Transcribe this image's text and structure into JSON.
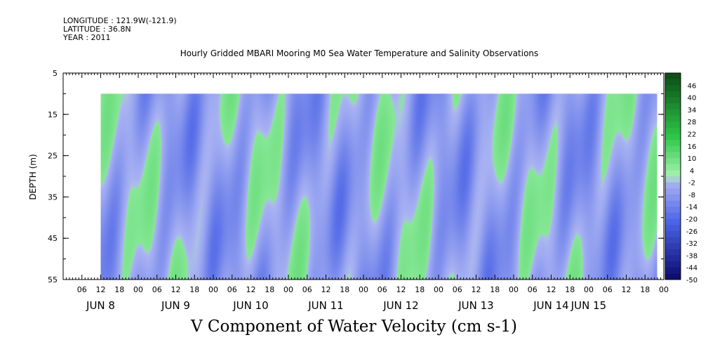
{
  "meta": {
    "longitude": "LONGITUDE : 121.9W(-121.9)",
    "latitude": "LATITUDE : 36.8N",
    "year": "YEAR : 2011"
  },
  "chart_data": {
    "type": "heatmap",
    "title": "Hourly Gridded MBARI Mooring M0 Sea Water Temperature and Salinity Observations",
    "xlabel": "V Component of Water Velocity (cm s-1)",
    "ylabel": "DEPTH (m)",
    "x_range_hours": [
      0,
      192
    ],
    "data_start_hour": 12,
    "y_range": [
      5,
      55
    ],
    "y_reversed": true,
    "data_top_depth": 10,
    "y_ticks": [
      5,
      15,
      25,
      35,
      45,
      55
    ],
    "hour_ticks": [
      "06",
      "12",
      "18",
      "00",
      "06",
      "12",
      "18",
      "00",
      "06",
      "12",
      "18",
      "00",
      "06",
      "12",
      "18",
      "00",
      "06",
      "12",
      "18",
      "00",
      "06",
      "12",
      "18",
      "00",
      "06",
      "12",
      "18",
      "00",
      "06",
      "12",
      "18",
      "00"
    ],
    "date_labels": [
      "JUN  8",
      "JUN  9",
      "JUN 10",
      "JUN 11",
      "JUN 12",
      "JUN 13",
      "JUN 14",
      "JUN 15"
    ],
    "date_label_hours": [
      12,
      36,
      60,
      84,
      108,
      132,
      156,
      168
    ],
    "colorbar": {
      "labels": [
        "46",
        "40",
        "34",
        "28",
        "22",
        "16",
        "10",
        "4",
        "-2",
        "-8",
        "-14",
        "-20",
        "-26",
        "-32",
        "-38",
        "-44",
        "-50"
      ],
      "min": -50,
      "max": 52,
      "colors": {
        "strong_positive": "#0a4a14",
        "positive": "#2fc84a",
        "weak_positive": "#a6f2b0",
        "weak_negative": "#a8b2f2",
        "negative": "#4a62e6",
        "strong_negative": "#0a0a6a"
      }
    },
    "field_description": {
      "dominant_value": -6,
      "positive_patch_value": 6
    }
  }
}
